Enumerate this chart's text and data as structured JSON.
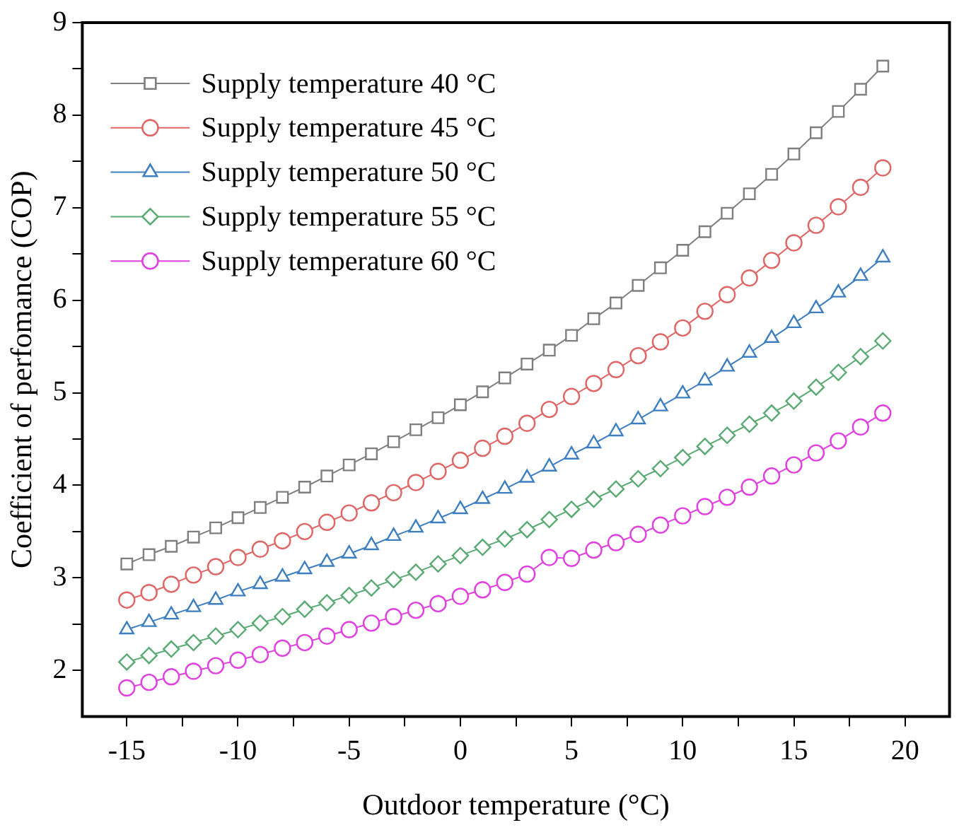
{
  "chart_data": {
    "type": "line",
    "xlabel": "Outdoor temperature (°C)",
    "ylabel": "Coefficient of perfomance (COP)",
    "x": [
      -15,
      -14,
      -13,
      -12,
      -11,
      -10,
      -9,
      -8,
      -7,
      -6,
      -5,
      -4,
      -3,
      -2,
      -1,
      0,
      1,
      2,
      3,
      4,
      5,
      6,
      7,
      8,
      9,
      10,
      11,
      12,
      13,
      14,
      15,
      16,
      17,
      18,
      19
    ],
    "xlim": [
      -17,
      22
    ],
    "xticks": [
      -15,
      {
        "value": -12.5,
        "label": null
      },
      -10,
      {
        "value": -7.5,
        "label": null
      },
      -5,
      {
        "value": -2.5,
        "label": null
      },
      0,
      {
        "value": 2.5,
        "label": null
      },
      5,
      {
        "value": 7.5,
        "label": null
      },
      10,
      {
        "value": 12.5,
        "label": null
      },
      15,
      {
        "value": 17.5,
        "label": null
      },
      20
    ],
    "ylim": [
      1.5,
      9
    ],
    "yticks": [
      2,
      {
        "value": 2.5,
        "label": null
      },
      3,
      {
        "value": 3.5,
        "label": null
      },
      4,
      {
        "value": 4.5,
        "label": null
      },
      5,
      {
        "value": 5.5,
        "label": null
      },
      6,
      {
        "value": 6.5,
        "label": null
      },
      7,
      {
        "value": 7.5,
        "label": null
      },
      8,
      {
        "value": 8.5,
        "label": null
      },
      9
    ],
    "grid": false,
    "legend": "top left",
    "line_style": "solid",
    "series": [
      {
        "name": "Supply temperature 40 °C",
        "color": "#7f7f7f",
        "marker": "square",
        "values": [
          3.15,
          3.25,
          3.34,
          3.44,
          3.54,
          3.65,
          3.76,
          3.87,
          3.98,
          4.1,
          4.22,
          4.34,
          4.47,
          4.6,
          4.73,
          4.87,
          5.01,
          5.16,
          5.31,
          5.46,
          5.62,
          5.8,
          5.97,
          6.16,
          6.35,
          6.54,
          6.74,
          6.94,
          7.15,
          7.36,
          7.58,
          7.81,
          8.04,
          8.28,
          8.53
        ]
      },
      {
        "name": "Supply temperature 45 °C",
        "color": "#e06666",
        "marker": "circle",
        "values": [
          2.76,
          2.84,
          2.93,
          3.03,
          3.12,
          3.22,
          3.31,
          3.4,
          3.5,
          3.6,
          3.7,
          3.81,
          3.92,
          4.03,
          4.15,
          4.27,
          4.4,
          4.53,
          4.67,
          4.82,
          4.96,
          5.1,
          5.25,
          5.4,
          5.55,
          5.7,
          5.88,
          6.06,
          6.24,
          6.43,
          6.62,
          6.81,
          7.01,
          7.22,
          7.43
        ]
      },
      {
        "name": "Supply temperature 50 °C",
        "color": "#3d7fc1",
        "marker": "triangle",
        "values": [
          2.44,
          2.52,
          2.6,
          2.68,
          2.76,
          2.85,
          2.93,
          3.01,
          3.09,
          3.17,
          3.26,
          3.35,
          3.45,
          3.54,
          3.64,
          3.74,
          3.85,
          3.96,
          4.08,
          4.2,
          4.33,
          4.45,
          4.58,
          4.71,
          4.85,
          4.99,
          5.13,
          5.28,
          5.43,
          5.59,
          5.75,
          5.91,
          6.08,
          6.26,
          6.46
        ]
      },
      {
        "name": "Supply temperature 55 °C",
        "color": "#5aaa73",
        "marker": "diamond",
        "values": [
          2.09,
          2.16,
          2.23,
          2.3,
          2.37,
          2.44,
          2.51,
          2.58,
          2.66,
          2.73,
          2.81,
          2.89,
          2.98,
          3.06,
          3.15,
          3.24,
          3.33,
          3.42,
          3.52,
          3.63,
          3.74,
          3.85,
          3.96,
          4.07,
          4.18,
          4.3,
          4.42,
          4.54,
          4.66,
          4.78,
          4.91,
          5.06,
          5.22,
          5.39,
          5.56
        ]
      },
      {
        "name": "Supply temperature 60 °C",
        "color": "#e040e0",
        "marker": "circle",
        "values": [
          1.81,
          1.87,
          1.93,
          1.99,
          2.05,
          2.11,
          2.17,
          2.24,
          2.3,
          2.37,
          2.44,
          2.51,
          2.58,
          2.65,
          2.72,
          2.8,
          2.87,
          2.95,
          3.04,
          3.22,
          3.21,
          3.3,
          3.38,
          3.47,
          3.57,
          3.67,
          3.77,
          3.87,
          3.98,
          4.1,
          4.22,
          4.35,
          4.48,
          4.63,
          4.78
        ]
      }
    ]
  }
}
